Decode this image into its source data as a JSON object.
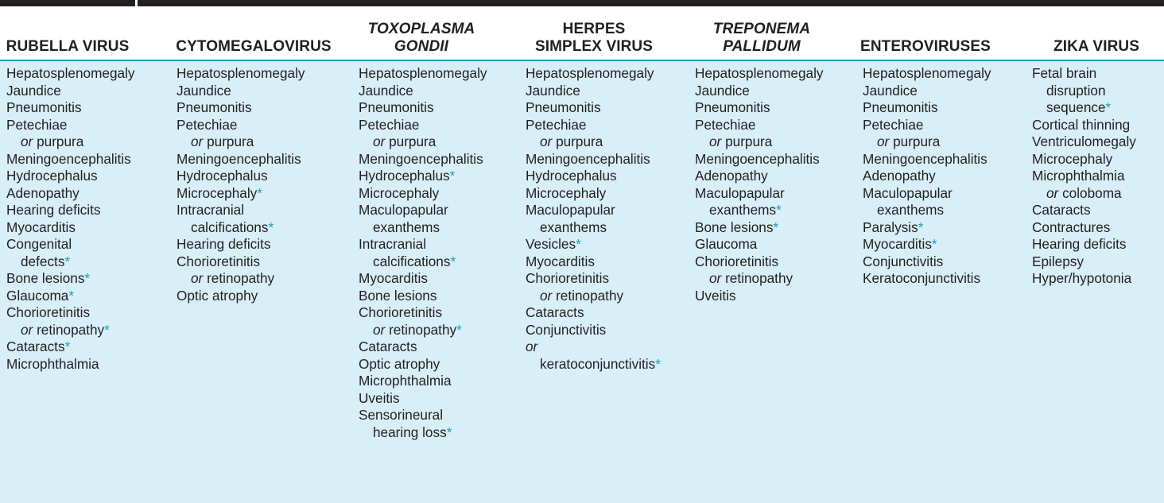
{
  "colors": {
    "header_rule": "#1aa0b8",
    "body_background": "#d8eff7",
    "asterisk": "#1aa0b8",
    "text": "#231f20"
  },
  "columns": [
    {
      "header_lines": [
        "RUBELLA VIRUS"
      ],
      "italic_header": false,
      "items": [
        {
          "lines": [
            "Hepatosplenomegaly"
          ]
        },
        {
          "lines": [
            "Jaundice"
          ]
        },
        {
          "lines": [
            "Pneumonitis"
          ]
        },
        {
          "lines": [
            "Petechiae",
            "or purpura"
          ]
        },
        {
          "lines": [
            "Meningoencephalitis"
          ]
        },
        {
          "lines": [
            "Hydrocephalus"
          ]
        },
        {
          "lines": [
            "Adenopathy"
          ]
        },
        {
          "lines": [
            "Hearing deficits"
          ]
        },
        {
          "lines": [
            "Myocarditis"
          ]
        },
        {
          "lines": [
            "Congenital",
            "defects"
          ],
          "asterisk": "*"
        },
        {
          "lines": [
            "Bone lesions"
          ],
          "asterisk": "*"
        },
        {
          "lines": [
            "Glaucoma"
          ],
          "asterisk": "*"
        },
        {
          "lines": [
            "Chorioretinitis",
            "or retinopathy"
          ],
          "asterisk": "*"
        },
        {
          "lines": [
            "Cataracts"
          ],
          "asterisk": "*"
        },
        {
          "lines": [
            "Microphthalmia"
          ]
        }
      ]
    },
    {
      "header_lines": [
        "CYTOMEGALOVIRUS"
      ],
      "italic_header": false,
      "items": [
        {
          "lines": [
            "Hepatosplenomegaly"
          ]
        },
        {
          "lines": [
            "Jaundice"
          ]
        },
        {
          "lines": [
            "Pneumonitis"
          ]
        },
        {
          "lines": [
            "Petechiae",
            "or purpura"
          ]
        },
        {
          "lines": [
            "Meningoencephalitis"
          ]
        },
        {
          "lines": [
            "Hydrocephalus"
          ]
        },
        {
          "lines": [
            "Microcephaly"
          ],
          "asterisk": "*"
        },
        {
          "lines": [
            "Intracranial",
            "calcifications"
          ],
          "asterisk": "*"
        },
        {
          "lines": [
            "Hearing deficits"
          ]
        },
        {
          "lines": [
            "Chorioretinitis",
            "or retinopathy"
          ]
        },
        {
          "lines": [
            "Optic atrophy"
          ]
        }
      ]
    },
    {
      "header_lines": [
        "TOXOPLASMA",
        "GONDII"
      ],
      "italic_header": true,
      "items": [
        {
          "lines": [
            "Hepatosplenomegaly"
          ]
        },
        {
          "lines": [
            "Jaundice"
          ]
        },
        {
          "lines": [
            "Pneumonitis"
          ]
        },
        {
          "lines": [
            "Petechiae",
            "or purpura"
          ]
        },
        {
          "lines": [
            "Meningoencephalitis"
          ]
        },
        {
          "lines": [
            "Hydrocephalus"
          ],
          "asterisk": "*"
        },
        {
          "lines": [
            "Microcephaly"
          ]
        },
        {
          "lines": [
            "Maculopapular",
            "exanthems"
          ]
        },
        {
          "lines": [
            "Intracranial",
            "calcifications"
          ],
          "asterisk": "*"
        },
        {
          "lines": [
            "Myocarditis"
          ]
        },
        {
          "lines": [
            "Bone lesions"
          ]
        },
        {
          "lines": [
            "Chorioretinitis",
            "or retinopathy"
          ],
          "asterisk": "*"
        },
        {
          "lines": [
            "Cataracts"
          ]
        },
        {
          "lines": [
            "Optic atrophy"
          ]
        },
        {
          "lines": [
            "Microphthalmia"
          ]
        },
        {
          "lines": [
            "Uveitis"
          ]
        },
        {
          "lines": [
            "Sensorineural",
            "hearing loss"
          ],
          "asterisk": "*"
        }
      ]
    },
    {
      "header_lines": [
        "HERPES",
        "SIMPLEX VIRUS"
      ],
      "italic_header": false,
      "items": [
        {
          "lines": [
            "Hepatosplenomegaly"
          ]
        },
        {
          "lines": [
            "Jaundice"
          ]
        },
        {
          "lines": [
            "Pneumonitis"
          ]
        },
        {
          "lines": [
            "Petechiae",
            "or purpura"
          ]
        },
        {
          "lines": [
            "Meningoencephalitis"
          ]
        },
        {
          "lines": [
            "Hydrocephalus"
          ]
        },
        {
          "lines": [
            "Microcephaly"
          ]
        },
        {
          "lines": [
            "Maculopapular",
            "exanthems"
          ]
        },
        {
          "lines": [
            "Vesicles"
          ],
          "asterisk": "*"
        },
        {
          "lines": [
            "Myocarditis"
          ]
        },
        {
          "lines": [
            "Chorioretinitis",
            "or retinopathy"
          ]
        },
        {
          "lines": [
            "Cataracts"
          ]
        },
        {
          "lines": [
            "Conjunctivitis"
          ]
        },
        {
          "lines": [
            "or",
            "keratoconjunctivitis"
          ],
          "asterisk": "*",
          "first_line_flush": true
        }
      ]
    },
    {
      "header_lines": [
        "TREPONEMA",
        "PALLIDUM"
      ],
      "italic_header": true,
      "items": [
        {
          "lines": [
            "Hepatosplenomegaly"
          ]
        },
        {
          "lines": [
            "Jaundice"
          ]
        },
        {
          "lines": [
            "Pneumonitis"
          ]
        },
        {
          "lines": [
            "Petechiae",
            "or purpura"
          ]
        },
        {
          "lines": [
            "Meningoencephalitis"
          ]
        },
        {
          "lines": [
            "Adenopathy"
          ]
        },
        {
          "lines": [
            "Maculopapular",
            "exanthems"
          ],
          "asterisk": "*"
        },
        {
          "lines": [
            "Bone lesions"
          ],
          "asterisk": "*"
        },
        {
          "lines": [
            "Glaucoma"
          ]
        },
        {
          "lines": [
            "Chorioretinitis",
            "or retinopathy"
          ]
        },
        {
          "lines": [
            "Uveitis"
          ]
        }
      ]
    },
    {
      "header_lines": [
        "ENTEROVIRUSES"
      ],
      "italic_header": false,
      "items": [
        {
          "lines": [
            "Hepatosplenomegaly"
          ]
        },
        {
          "lines": [
            "Jaundice"
          ]
        },
        {
          "lines": [
            "Pneumonitis"
          ]
        },
        {
          "lines": [
            "Petechiae",
            "or purpura"
          ]
        },
        {
          "lines": [
            "Meningoencephalitis"
          ]
        },
        {
          "lines": [
            "Adenopathy"
          ]
        },
        {
          "lines": [
            "Maculopapular",
            "exanthems"
          ]
        },
        {
          "lines": [
            "Paralysis"
          ],
          "asterisk": "*"
        },
        {
          "lines": [
            "Myocarditis"
          ],
          "asterisk": "*"
        },
        {
          "lines": [
            "Conjunctivitis"
          ]
        },
        {
          "lines": [
            "Keratoconjunctivitis"
          ]
        }
      ]
    },
    {
      "header_lines": [
        "ZIKA VIRUS"
      ],
      "italic_header": false,
      "items": [
        {
          "lines": [
            "Fetal brain",
            "disruption",
            "sequence"
          ],
          "asterisk": "*"
        },
        {
          "lines": [
            "Cortical thinning"
          ]
        },
        {
          "lines": [
            "Ventriculomegaly"
          ]
        },
        {
          "lines": [
            "Microcephaly"
          ]
        },
        {
          "lines": [
            "Microphthalmia",
            "or coloboma"
          ]
        },
        {
          "lines": [
            "Cataracts"
          ]
        },
        {
          "lines": [
            "Contractures"
          ]
        },
        {
          "lines": [
            "Hearing deficits"
          ]
        },
        {
          "lines": [
            "Epilepsy"
          ]
        },
        {
          "lines": [
            "Hyper/hypotonia"
          ]
        }
      ]
    }
  ]
}
